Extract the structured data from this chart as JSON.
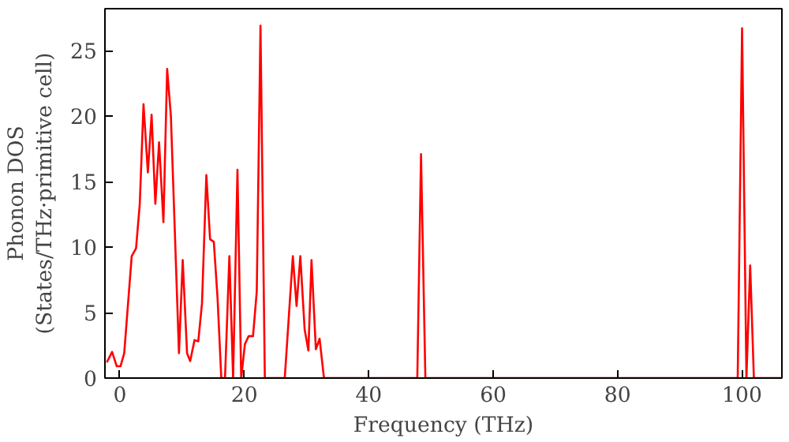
{
  "chart_data": {
    "type": "line",
    "xlabel": "Frequency (THz)",
    "ylabel": "Phonon DOS\n(States/THz·primitive cell)",
    "xlim": [
      -2.4,
      106.4
    ],
    "ylim": [
      0,
      28.2
    ],
    "xticks": [
      0,
      20,
      40,
      60,
      80,
      100
    ],
    "yticks": [
      0,
      5,
      10,
      15,
      20,
      25
    ],
    "grid": false,
    "line_style": "solid",
    "series": [
      {
        "color": "#ff0000",
        "x": [
          -2.1,
          -1.25,
          -0.5,
          0.1,
          0.7,
          1.9,
          2.6,
          3.2,
          3.8,
          4.5,
          5.1,
          5.7,
          6.3,
          7.0,
          7.6,
          8.2,
          9.5,
          10.1,
          10.8,
          11.3,
          12.0,
          12.6,
          13.2,
          13.9,
          14.5,
          15.1,
          15.7,
          16.3,
          16.9,
          17.6,
          18.2,
          18.9,
          19.5,
          20.1,
          20.7,
          21.4,
          22.0,
          22.6,
          23.3,
          26.5,
          27.8,
          28.4,
          29.0,
          29.7,
          30.3,
          30.8,
          31.5,
          32.1,
          32.8,
          47.8,
          48.4,
          49.1,
          99.3,
          100.0,
          100.7,
          101.3,
          101.9,
          106.4
        ],
        "values": [
          1.2,
          2.0,
          0.9,
          0.9,
          1.9,
          9.3,
          9.9,
          13.3,
          20.9,
          15.7,
          20.1,
          13.3,
          18.0,
          11.9,
          23.6,
          20.0,
          1.9,
          9.0,
          1.9,
          1.3,
          2.9,
          2.8,
          5.7,
          15.5,
          10.6,
          10.4,
          6.1,
          0,
          0,
          9.3,
          0,
          15.9,
          0,
          2.6,
          3.2,
          3.2,
          6.6,
          26.9,
          0,
          0,
          9.3,
          5.5,
          9.3,
          3.7,
          2.1,
          9.0,
          2.2,
          3.0,
          0,
          0,
          17.1,
          0,
          0,
          26.7,
          0,
          8.6,
          0,
          0
        ]
      }
    ]
  }
}
